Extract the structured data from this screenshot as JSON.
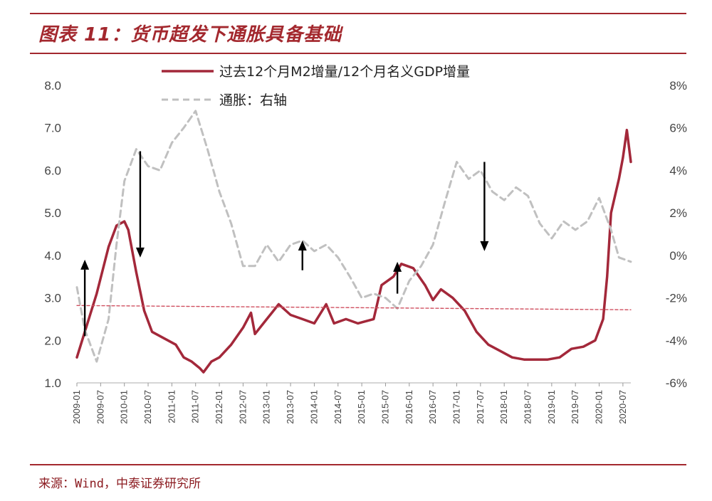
{
  "title": "图表 11：货币超发下通胀具备基础",
  "source": "来源：Wind，中泰证券研究所",
  "chart_data": {
    "type": "line",
    "title": "图表 11：货币超发下通胀具备基础",
    "x_range": [
      "2009-01",
      "2020-09"
    ],
    "y_left": {
      "min": 1.0,
      "max": 8.0,
      "ticks": [
        "8.0",
        "7.0",
        "6.0",
        "5.0",
        "4.0",
        "3.0",
        "2.0",
        "1.0"
      ]
    },
    "y_right": {
      "min": -6,
      "max": 8,
      "unit": "%",
      "ticks": [
        "8%",
        "6%",
        "4%",
        "2%",
        "0%",
        "-2%",
        "-4%",
        "-6%"
      ]
    },
    "x_ticks": [
      "2009-01",
      "2009-07",
      "2010-01",
      "2010-07",
      "2011-01",
      "2011-07",
      "2012-01",
      "2012-07",
      "2013-01",
      "2013-07",
      "2014-01",
      "2014-07",
      "2015-01",
      "2015-07",
      "2016-01",
      "2016-07",
      "2017-01",
      "2017-07",
      "2018-01",
      "2018-07",
      "2019-01",
      "2019-07",
      "2020-01",
      "2020-07"
    ],
    "legend": [
      "过去12个月M2增量/12个月名义GDP增量",
      "通胀：右轴"
    ],
    "series": [
      {
        "name": "过去12个月M2增量/12个月名义GDP增量",
        "axis": "left",
        "color": "#a3283a",
        "points": [
          [
            "2009-01",
            1.6
          ],
          [
            "2009-03",
            2.2
          ],
          [
            "2009-06",
            3.1
          ],
          [
            "2009-09",
            4.2
          ],
          [
            "2009-11",
            4.7
          ],
          [
            "2010-01",
            4.8
          ],
          [
            "2010-02",
            4.6
          ],
          [
            "2010-04",
            3.6
          ],
          [
            "2010-06",
            2.7
          ],
          [
            "2010-08",
            2.2
          ],
          [
            "2010-10",
            2.1
          ],
          [
            "2010-12",
            2.0
          ],
          [
            "2011-02",
            1.9
          ],
          [
            "2011-04",
            1.6
          ],
          [
            "2011-06",
            1.5
          ],
          [
            "2011-08",
            1.35
          ],
          [
            "2011-09",
            1.25
          ],
          [
            "2011-11",
            1.5
          ],
          [
            "2012-01",
            1.6
          ],
          [
            "2012-04",
            1.9
          ],
          [
            "2012-07",
            2.3
          ],
          [
            "2012-09",
            2.65
          ],
          [
            "2012-10",
            2.15
          ],
          [
            "2013-01",
            2.5
          ],
          [
            "2013-04",
            2.85
          ],
          [
            "2013-07",
            2.6
          ],
          [
            "2013-10",
            2.5
          ],
          [
            "2014-01",
            2.4
          ],
          [
            "2014-04",
            2.85
          ],
          [
            "2014-06",
            2.4
          ],
          [
            "2014-09",
            2.5
          ],
          [
            "2014-12",
            2.4
          ],
          [
            "2015-04",
            2.5
          ],
          [
            "2015-06",
            3.3
          ],
          [
            "2015-09",
            3.5
          ],
          [
            "2015-11",
            3.8
          ],
          [
            "2016-02",
            3.7
          ],
          [
            "2016-05",
            3.3
          ],
          [
            "2016-07",
            2.95
          ],
          [
            "2016-09",
            3.2
          ],
          [
            "2016-12",
            3.0
          ],
          [
            "2017-03",
            2.7
          ],
          [
            "2017-06",
            2.2
          ],
          [
            "2017-09",
            1.9
          ],
          [
            "2017-12",
            1.75
          ],
          [
            "2018-03",
            1.6
          ],
          [
            "2018-06",
            1.55
          ],
          [
            "2018-09",
            1.55
          ],
          [
            "2018-12",
            1.55
          ],
          [
            "2019-03",
            1.6
          ],
          [
            "2019-06",
            1.8
          ],
          [
            "2019-09",
            1.85
          ],
          [
            "2019-12",
            2.0
          ],
          [
            "2020-02",
            2.5
          ],
          [
            "2020-03",
            3.5
          ],
          [
            "2020-04",
            5.0
          ],
          [
            "2020-06",
            5.8
          ],
          [
            "2020-07",
            6.3
          ],
          [
            "2020-08",
            6.95
          ],
          [
            "2020-09",
            6.2
          ]
        ]
      },
      {
        "name": "通胀：右轴",
        "axis": "right",
        "color": "#c0c0c0",
        "points": [
          [
            "2009-01",
            -1.5
          ],
          [
            "2009-03",
            -3.5
          ],
          [
            "2009-06",
            -5.0
          ],
          [
            "2009-09",
            -3.0
          ],
          [
            "2009-11",
            0.5
          ],
          [
            "2010-01",
            3.5
          ],
          [
            "2010-04",
            5.0
          ],
          [
            "2010-07",
            4.2
          ],
          [
            "2010-10",
            4.0
          ],
          [
            "2011-01",
            5.3
          ],
          [
            "2011-04",
            6.0
          ],
          [
            "2011-07",
            6.8
          ],
          [
            "2011-10",
            5.0
          ],
          [
            "2012-01",
            3.0
          ],
          [
            "2012-04",
            1.5
          ],
          [
            "2012-07",
            -0.5
          ],
          [
            "2012-10",
            -0.5
          ],
          [
            "2013-01",
            0.5
          ],
          [
            "2013-04",
            -0.3
          ],
          [
            "2013-07",
            0.5
          ],
          [
            "2013-10",
            0.7
          ],
          [
            "2014-01",
            0.2
          ],
          [
            "2014-04",
            0.5
          ],
          [
            "2014-07",
            -0.1
          ],
          [
            "2014-10",
            -1.0
          ],
          [
            "2015-01",
            -2.0
          ],
          [
            "2015-04",
            -1.8
          ],
          [
            "2015-07",
            -2.0
          ],
          [
            "2015-10",
            -2.5
          ],
          [
            "2016-01",
            -1.2
          ],
          [
            "2016-04",
            -0.5
          ],
          [
            "2016-07",
            0.5
          ],
          [
            "2016-10",
            2.5
          ],
          [
            "2017-01",
            4.4
          ],
          [
            "2017-04",
            3.6
          ],
          [
            "2017-07",
            4.0
          ],
          [
            "2017-10",
            3.0
          ],
          [
            "2018-01",
            2.6
          ],
          [
            "2018-04",
            3.2
          ],
          [
            "2018-07",
            2.8
          ],
          [
            "2018-10",
            1.5
          ],
          [
            "2019-01",
            0.8
          ],
          [
            "2019-04",
            1.6
          ],
          [
            "2019-07",
            1.2
          ],
          [
            "2019-10",
            1.6
          ],
          [
            "2020-01",
            2.7
          ],
          [
            "2020-04",
            1.2
          ],
          [
            "2020-06",
            -0.1
          ],
          [
            "2020-09",
            -0.3
          ]
        ]
      },
      {
        "name": "",
        "axis": "left",
        "color": "#d05060",
        "points": [
          [
            "2009-01",
            2.82
          ],
          [
            "2020-09",
            2.72
          ]
        ]
      }
    ],
    "annotations": [
      {
        "type": "arrow-up",
        "x": "2009-03",
        "y_from": 2.1,
        "y_to": 3.9
      },
      {
        "type": "arrow-down",
        "x": "2010-05",
        "y_from": 6.45,
        "y_to": 3.95
      },
      {
        "type": "arrow-up",
        "x": "2013-10",
        "y_from": 3.65,
        "y_to": 4.35
      },
      {
        "type": "arrow-up",
        "x": "2015-10",
        "y_from": 3.1,
        "y_to": 3.85
      },
      {
        "type": "arrow-down",
        "x": "2017-08",
        "y_from": 6.2,
        "y_to": 4.1
      }
    ],
    "grid": false,
    "legend_position": "top-center"
  }
}
